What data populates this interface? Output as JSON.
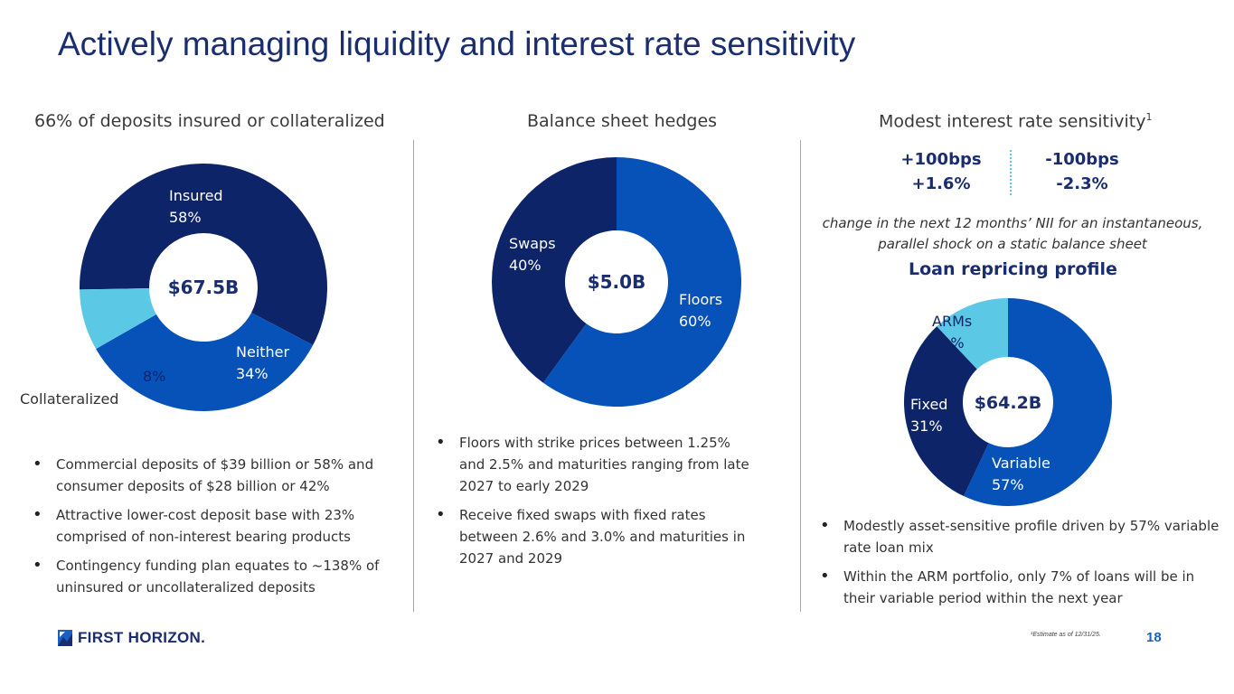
{
  "slide": {
    "title": "Actively managing liquidity and interest rate sensitivity",
    "page_number": "18",
    "footnote": "¹Estimate as of 12/31/25.",
    "logo_text": "FIRST HORIZON."
  },
  "columns": {
    "left_heading": "66% of deposits insured or collateralized",
    "middle_heading": "Balance sheet hedges",
    "right_heading": "Modest interest rate sensitivity",
    "right_heading_sup": "1"
  },
  "sensitivity": {
    "up_label": "+100bps",
    "up_value": "+1.6%",
    "down_label": "-100bps",
    "down_value": "-2.3%",
    "note": "change in the next 12 months’ NII for an instantaneous, parallel shock on a static balance sheet"
  },
  "loan_heading": "Loan repricing profile",
  "bullets": {
    "left": [
      "Commercial deposits of $39 billion or 58% and consumer deposits of $28 billion or 42%",
      "Attractive lower-cost deposit base with 23% comprised of non-interest bearing products",
      "Contingency funding plan equates to ~138% of uninsured or uncollateralized deposits"
    ],
    "middle": [
      "Floors with strike prices between 1.25% and 2.5% and maturities ranging from late 2027 to early 2029",
      "Receive fixed swaps with fixed rates between 2.6% and 3.0% and maturities in 2027 and 2029"
    ],
    "right": [
      "Modestly asset-sensitive profile driven by 57% variable rate loan mix",
      "Within the ARM portfolio, only 7% of loans will be in their variable period within the next year"
    ]
  },
  "colors": {
    "navy": "#0d2469",
    "royal": "#0752b8",
    "light": "#5bc8e6",
    "title": "#1a2d6e"
  },
  "chart_data": [
    {
      "type": "pie",
      "subtype": "donut",
      "center_label": "$67.5B",
      "slices": [
        {
          "name": "Insured",
          "value": 58,
          "label": "58%",
          "color": "#0d2469"
        },
        {
          "name": "Neither",
          "value": 34,
          "label": "34%",
          "color": "#0752b8"
        },
        {
          "name": "Collateralized",
          "value": 8,
          "label": "8%",
          "color": "#5bc8e6"
        }
      ]
    },
    {
      "type": "pie",
      "subtype": "donut",
      "center_label": "$5.0B",
      "slices": [
        {
          "name": "Floors",
          "value": 60,
          "label": "60%",
          "color": "#0752b8"
        },
        {
          "name": "Swaps",
          "value": 40,
          "label": "40%",
          "color": "#0d2469"
        }
      ]
    },
    {
      "type": "pie",
      "subtype": "donut",
      "center_label": "$64.2B",
      "slices": [
        {
          "name": "Variable",
          "value": 57,
          "label": "57%",
          "color": "#0752b8"
        },
        {
          "name": "Fixed",
          "value": 31,
          "label": "31%",
          "color": "#0d2469"
        },
        {
          "name": "ARMs",
          "value": 12,
          "label": "12%",
          "color": "#5bc8e6"
        }
      ]
    }
  ]
}
